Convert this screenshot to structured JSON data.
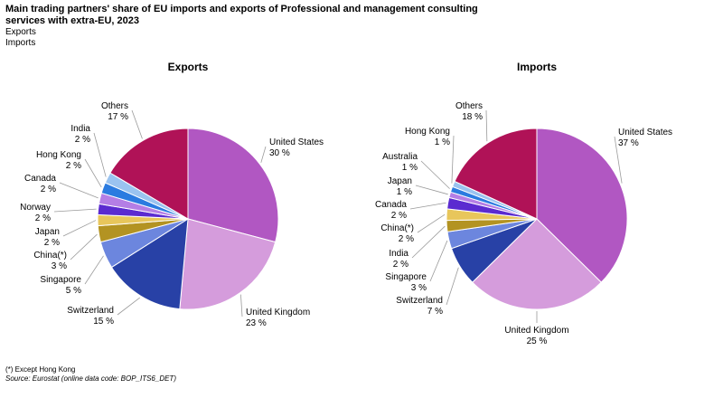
{
  "title": "Main trading partners' share of EU imports and exports of Professional and management consulting services with extra-EU, 2023",
  "legend": [
    "Exports",
    "Imports"
  ],
  "footnote": "(*) Except Hong Kong",
  "source": "Source: Eurostat (online data code: BOP_ITS6_DET)",
  "chart_data": [
    {
      "type": "pie",
      "title": "Exports",
      "unit": "%",
      "slices": [
        {
          "label": "United States",
          "value": 30,
          "color": "#b157c2"
        },
        {
          "label": "United Kingdom",
          "value": 23,
          "color": "#d59cdc"
        },
        {
          "label": "Switzerland",
          "value": 15,
          "color": "#2841a6"
        },
        {
          "label": "Singapore",
          "value": 5,
          "color": "#6c86de"
        },
        {
          "label": "China(*)",
          "value": 3,
          "color": "#b39322"
        },
        {
          "label": "Japan",
          "value": 2,
          "color": "#e8c65b"
        },
        {
          "label": "Norway",
          "value": 2,
          "color": "#5b2bd0"
        },
        {
          "label": "Canada",
          "value": 2,
          "color": "#b47ee5"
        },
        {
          "label": "Hong Kong",
          "value": 2,
          "color": "#2b7be0"
        },
        {
          "label": "India",
          "value": 2,
          "color": "#9ac3f0"
        },
        {
          "label": "Others",
          "value": 17,
          "color": "#b01257"
        }
      ]
    },
    {
      "type": "pie",
      "title": "Imports",
      "unit": "%",
      "slices": [
        {
          "label": "United States",
          "value": 37,
          "color": "#b157c2"
        },
        {
          "label": "United Kingdom",
          "value": 25,
          "color": "#d59cdc"
        },
        {
          "label": "Switzerland",
          "value": 7,
          "color": "#2841a6"
        },
        {
          "label": "Singapore",
          "value": 3,
          "color": "#6c86de"
        },
        {
          "label": "India",
          "value": 2,
          "color": "#b39322"
        },
        {
          "label": "China(*)",
          "value": 2,
          "color": "#e8c65b"
        },
        {
          "label": "Canada",
          "value": 2,
          "color": "#5b2bd0"
        },
        {
          "label": "Japan",
          "value": 1,
          "color": "#b47ee5"
        },
        {
          "label": "Australia",
          "value": 1,
          "color": "#2b7be0"
        },
        {
          "label": "Hong Kong",
          "value": 1,
          "color": "#9ac3f0"
        },
        {
          "label": "Others",
          "value": 18,
          "color": "#b01257"
        }
      ]
    }
  ]
}
